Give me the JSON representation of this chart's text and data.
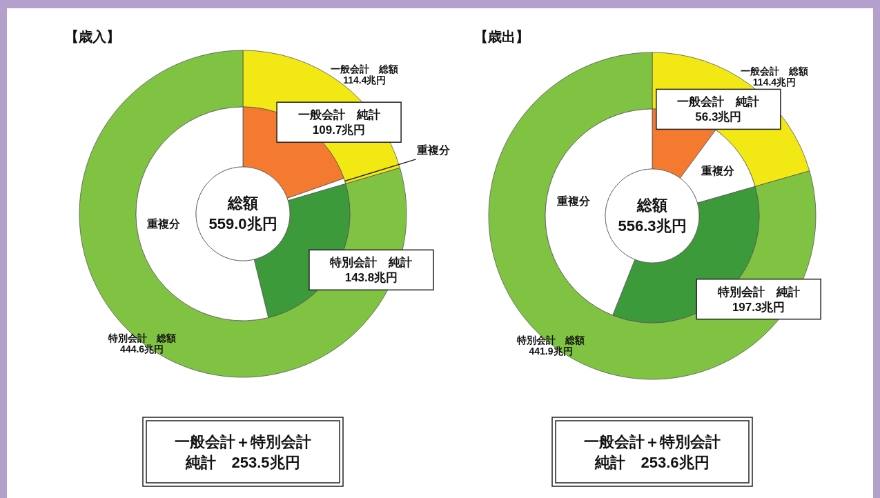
{
  "chart_data": [
    {
      "type": "donut",
      "title": "【歳入】",
      "categories": [
        "一般会計　総額",
        "特別会計　総額"
      ],
      "values": [
        114.4,
        444.6
      ],
      "value_labels": [
        "114.4兆円",
        "444.6兆円"
      ],
      "colors": [
        "#f2e813",
        "#80c342"
      ]
    },
    {
      "type": "donut",
      "categories": [
        "一般会計　純計",
        "重複分",
        "特別会計　純計",
        "重複分"
      ],
      "values": [
        109.7,
        4.7,
        143.8,
        300.8
      ],
      "value_labels": [
        "109.7兆円",
        null,
        "143.8兆円",
        null
      ],
      "colors": [
        "#f47a30",
        "#ffffff",
        "#3d9a3a",
        "#ffffff"
      ],
      "annotations": [
        "総額",
        "559.0兆円",
        "一般会計＋特別会計",
        "純計　253.5兆円"
      ]
    },
    {
      "type": "donut",
      "title": "【歳出】",
      "categories": [
        "一般会計　総額",
        "特別会計　総額"
      ],
      "values": [
        114.4,
        441.9
      ],
      "value_labels": [
        "114.4兆円",
        "441.9兆円"
      ],
      "colors": [
        "#f2e813",
        "#80c342"
      ]
    },
    {
      "type": "donut",
      "categories": [
        "一般会計　純計",
        "重複分",
        "特別会計　純計",
        "重複分"
      ],
      "values": [
        56.3,
        58.1,
        197.3,
        244.6
      ],
      "value_labels": [
        "56.3兆円",
        null,
        "197.3兆円",
        null
      ],
      "colors": [
        "#f47a30",
        "#ffffff",
        "#3d9a3a",
        "#ffffff"
      ],
      "annotations": [
        "総額",
        "556.3兆円",
        "一般会計＋特別会計",
        "純計　253.6兆円"
      ]
    }
  ]
}
